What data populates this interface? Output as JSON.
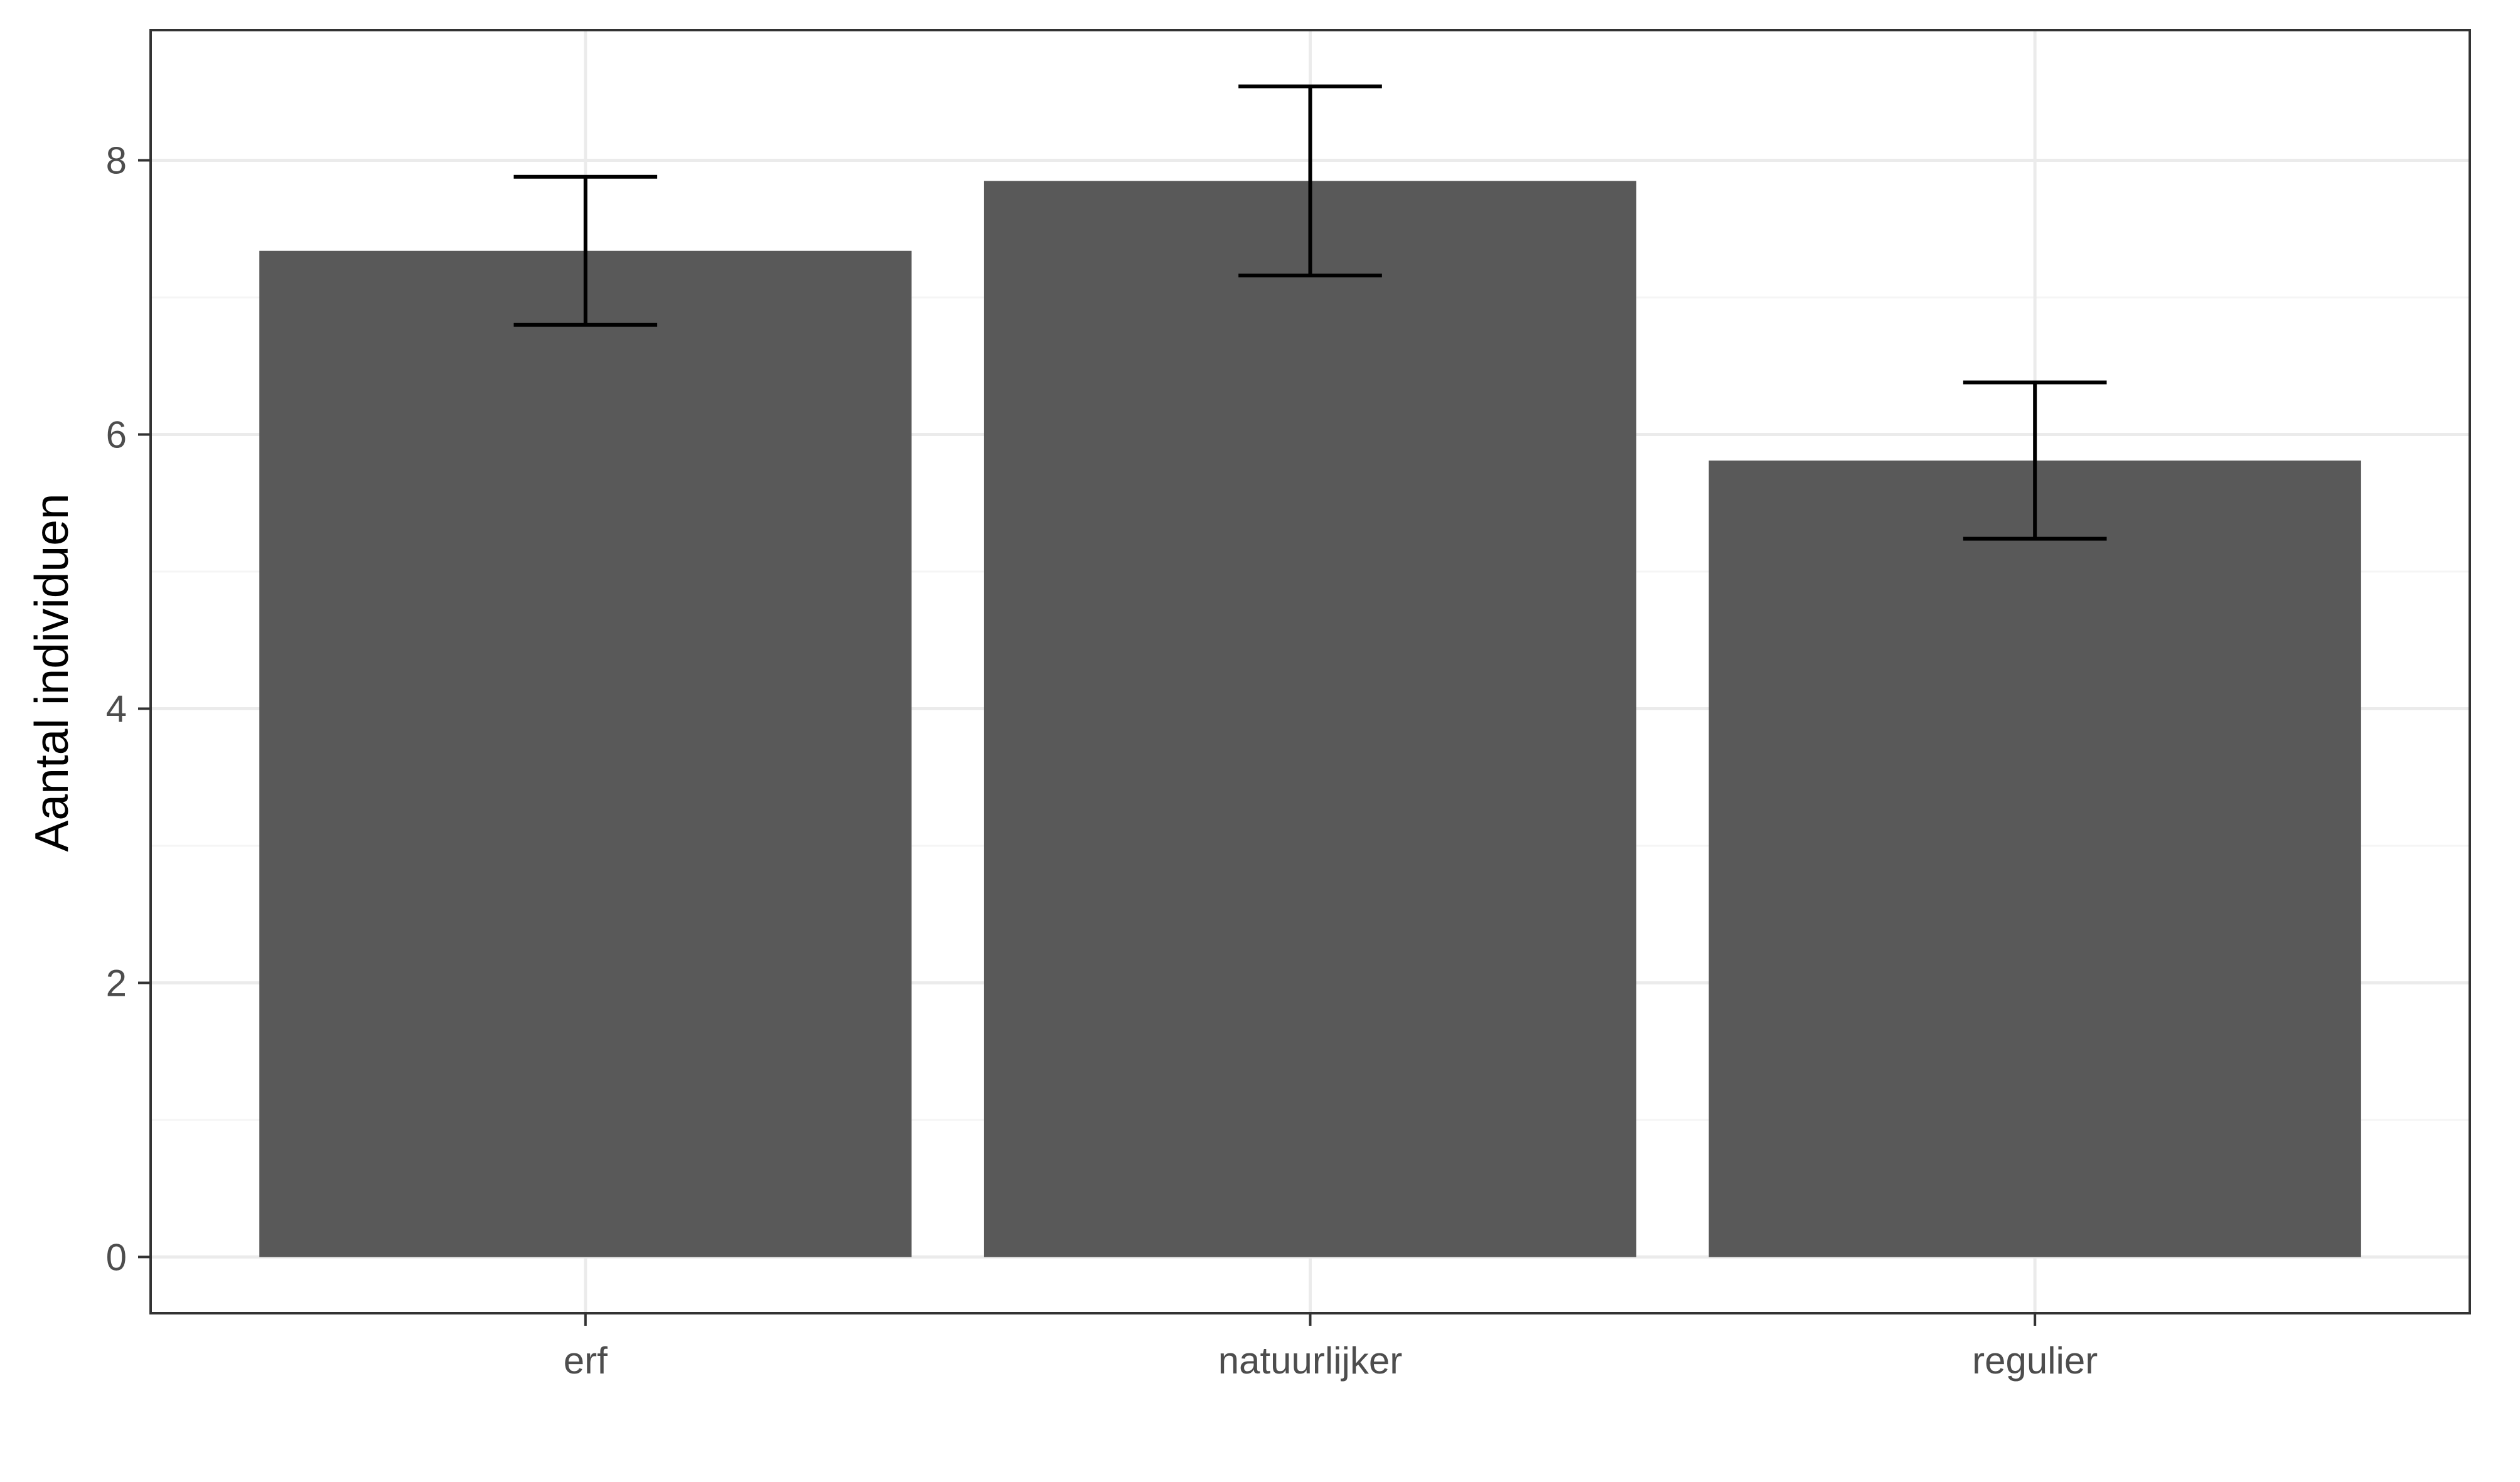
{
  "chart_data": {
    "type": "bar",
    "title": "",
    "xlabel": "",
    "ylabel": "Aantal individuen",
    "categories": [
      "erf",
      "natuurlijker",
      "regulier"
    ],
    "values": [
      7.34,
      7.85,
      5.81
    ],
    "error_low": [
      6.8,
      7.16,
      5.24
    ],
    "error_high": [
      7.88,
      8.54,
      6.38
    ],
    "ylim": [
      -0.41,
      8.95
    ],
    "yticks": [
      0,
      2,
      4,
      6,
      8
    ],
    "ytick_labels": [
      "0",
      "2",
      "4",
      "6",
      "8"
    ],
    "grid": true,
    "legend": "none",
    "colors": {
      "bar": "#595959",
      "error_bar": "#000000",
      "grid_major": "#ebebeb",
      "grid_minor": "#f5f5f5",
      "panel_border": "#333333",
      "tick_text": "#4d4d4d"
    }
  }
}
